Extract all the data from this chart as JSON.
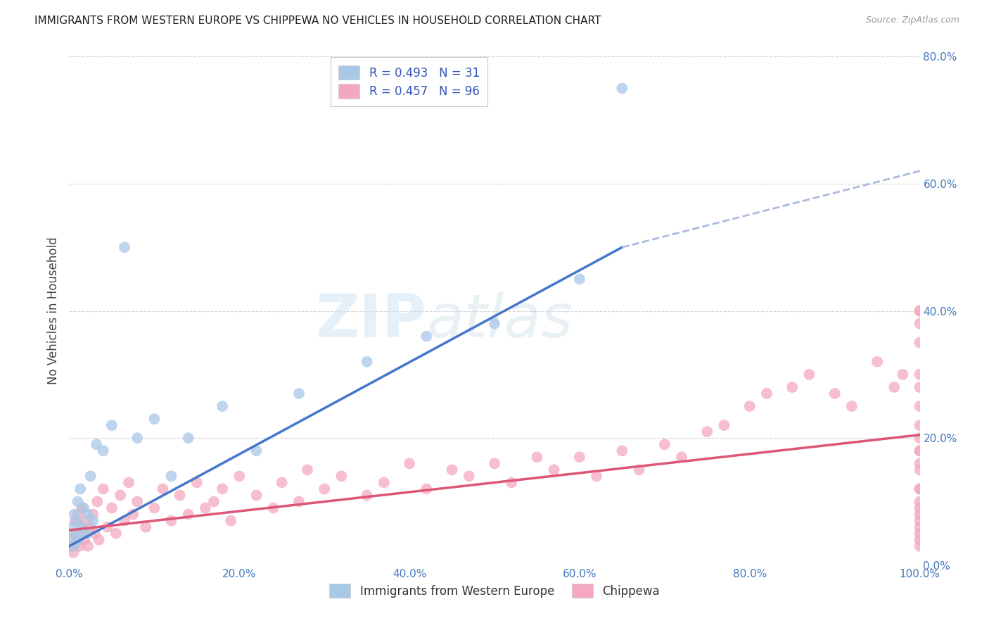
{
  "title": "IMMIGRANTS FROM WESTERN EUROPE VS CHIPPEWA NO VEHICLES IN HOUSEHOLD CORRELATION CHART",
  "source": "Source: ZipAtlas.com",
  "ylabel": "No Vehicles in Household",
  "blue_R": "0.493",
  "blue_N": "31",
  "pink_R": "0.457",
  "pink_N": "96",
  "blue_color": "#a8c8e8",
  "pink_color": "#f4a8c0",
  "blue_line_color": "#4477cc",
  "pink_line_color": "#dd5577",
  "dashed_line_color": "#aabbdd",
  "legend_label_blue": "Immigrants from Western Europe",
  "legend_label_pink": "Chippewa",
  "blue_scatter_x": [
    0.2,
    0.4,
    0.5,
    0.6,
    0.8,
    0.9,
    1.0,
    1.1,
    1.3,
    1.5,
    1.7,
    2.0,
    2.2,
    2.5,
    2.8,
    3.2,
    4.0,
    5.0,
    6.5,
    8.0,
    10.0,
    12.0,
    14.0,
    18.0,
    22.0,
    27.0,
    35.0,
    42.0,
    50.0,
    60.0,
    65.0
  ],
  "blue_scatter_y": [
    4.0,
    6.0,
    3.0,
    8.0,
    5.0,
    7.0,
    10.0,
    4.0,
    12.0,
    6.0,
    9.0,
    5.0,
    8.0,
    14.0,
    7.0,
    19.0,
    18.0,
    22.0,
    50.0,
    20.0,
    23.0,
    14.0,
    20.0,
    25.0,
    18.0,
    27.0,
    32.0,
    36.0,
    38.0,
    45.0,
    75.0
  ],
  "pink_scatter_x": [
    0.2,
    0.4,
    0.5,
    0.7,
    0.9,
    1.0,
    1.2,
    1.4,
    1.5,
    1.7,
    1.8,
    2.0,
    2.2,
    2.5,
    2.8,
    3.0,
    3.3,
    3.5,
    4.0,
    4.5,
    5.0,
    5.5,
    6.0,
    6.5,
    7.0,
    7.5,
    8.0,
    9.0,
    10.0,
    11.0,
    12.0,
    13.0,
    14.0,
    15.0,
    16.0,
    17.0,
    18.0,
    19.0,
    20.0,
    22.0,
    24.0,
    25.0,
    27.0,
    28.0,
    30.0,
    32.0,
    35.0,
    37.0,
    40.0,
    42.0,
    45.0,
    47.0,
    50.0,
    52.0,
    55.0,
    57.0,
    60.0,
    62.0,
    65.0,
    67.0,
    70.0,
    72.0,
    75.0,
    77.0,
    80.0,
    82.0,
    85.0,
    87.0,
    90.0,
    92.0,
    95.0,
    97.0,
    98.0,
    100.0,
    100.0,
    100.0,
    100.0,
    100.0,
    100.0,
    100.0,
    100.0,
    100.0,
    100.0,
    100.0,
    100.0,
    100.0,
    100.0,
    100.0,
    100.0,
    100.0,
    100.0,
    100.0,
    100.0,
    100.0,
    100.0,
    100.0
  ],
  "pink_scatter_y": [
    3.0,
    5.0,
    2.0,
    7.0,
    4.0,
    8.0,
    3.0,
    6.0,
    9.0,
    5.0,
    4.0,
    7.0,
    3.0,
    6.0,
    8.0,
    5.0,
    10.0,
    4.0,
    12.0,
    6.0,
    9.0,
    5.0,
    11.0,
    7.0,
    13.0,
    8.0,
    10.0,
    6.0,
    9.0,
    12.0,
    7.0,
    11.0,
    8.0,
    13.0,
    9.0,
    10.0,
    12.0,
    7.0,
    14.0,
    11.0,
    9.0,
    13.0,
    10.0,
    15.0,
    12.0,
    14.0,
    11.0,
    13.0,
    16.0,
    12.0,
    15.0,
    14.0,
    16.0,
    13.0,
    17.0,
    15.0,
    17.0,
    14.0,
    18.0,
    15.0,
    19.0,
    17.0,
    21.0,
    22.0,
    25.0,
    27.0,
    28.0,
    30.0,
    27.0,
    25.0,
    32.0,
    28.0,
    30.0,
    40.0,
    18.0,
    12.0,
    8.0,
    6.0,
    4.0,
    20.0,
    25.0,
    35.0,
    10.0,
    15.0,
    7.0,
    30.0,
    22.0,
    5.0,
    18.0,
    12.0,
    28.0,
    9.0,
    40.0,
    16.0,
    3.0,
    38.0
  ],
  "blue_trend_x0": 0,
  "blue_trend_y0": 3.0,
  "blue_trend_x1": 65,
  "blue_trend_y1": 50.0,
  "blue_dash_x1": 100,
  "blue_dash_y1": 62.0,
  "pink_trend_x0": 0,
  "pink_trend_y0": 5.5,
  "pink_trend_x1": 100,
  "pink_trend_y1": 20.5,
  "xlim": [
    0,
    100
  ],
  "ylim": [
    0,
    80
  ],
  "xtick_positions": [
    0,
    20,
    40,
    60,
    80,
    100
  ],
  "ytick_positions": [
    0,
    20,
    40,
    60,
    80
  ],
  "background_color": "#ffffff",
  "grid_color": "#cccccc"
}
